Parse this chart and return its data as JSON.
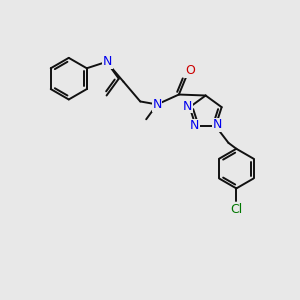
{
  "bg": "#e8e8e8",
  "bc": "#111111",
  "nc": "#0000ee",
  "oc": "#cc0000",
  "clc": "#007700",
  "lw": 1.4,
  "fs": 8.5,
  "figsize": [
    3.0,
    3.0
  ],
  "dpi": 100,
  "xlim": [
    0,
    300
  ],
  "ylim": [
    0,
    300
  ]
}
